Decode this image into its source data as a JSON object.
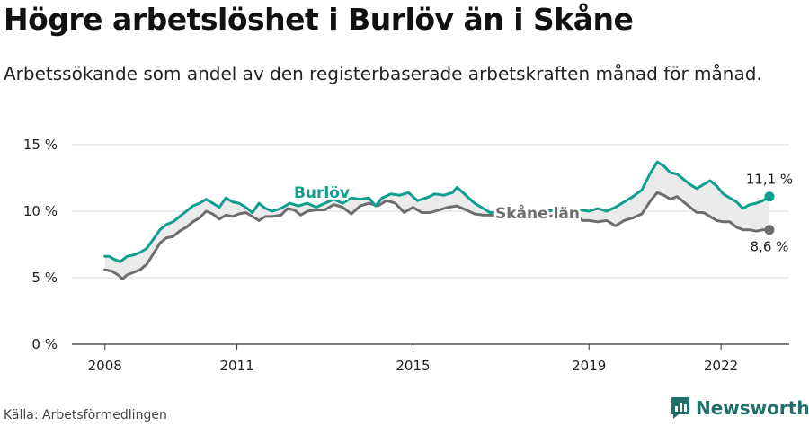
{
  "header": {
    "title": "Högre arbetslöshet i Burlöv än i Skåne",
    "subtitle": "Arbetssökande som andel av den registerbaserade arbetskraften månad för månad."
  },
  "footer": {
    "source": "Källa: Arbetsförmedlingen",
    "brand": "Newsworthy"
  },
  "chart_data": {
    "type": "line",
    "xlabel": "",
    "ylabel": "",
    "ylim": [
      0,
      15
    ],
    "xlim": [
      2008,
      2023.1
    ],
    "grid": true,
    "y_ticks": [
      0,
      5,
      10,
      15
    ],
    "y_tick_labels": [
      "0 %",
      "5 %",
      "10 %",
      "15 %"
    ],
    "x_ticks": [
      2008,
      2011,
      2015,
      2019,
      2022
    ],
    "x_tick_labels": [
      "2008",
      "2011",
      "2015",
      "2019",
      "2022"
    ],
    "colors": {
      "burlov": "#0f9e8f",
      "skane": "#6d6d6d",
      "grid": "#d9d9d9",
      "text": "#222222"
    },
    "series": [
      {
        "name": "Burlöv",
        "label": "Burlöv",
        "end_label": "11,1 %",
        "points": [
          [
            2008.0,
            6.6
          ],
          [
            2008.1,
            6.6
          ],
          [
            2008.2,
            6.4
          ],
          [
            2008.35,
            6.2
          ],
          [
            2008.5,
            6.6
          ],
          [
            2008.65,
            6.7
          ],
          [
            2008.8,
            6.9
          ],
          [
            2008.95,
            7.2
          ],
          [
            2009.1,
            7.9
          ],
          [
            2009.25,
            8.6
          ],
          [
            2009.4,
            9.0
          ],
          [
            2009.55,
            9.2
          ],
          [
            2009.7,
            9.6
          ],
          [
            2009.85,
            10.0
          ],
          [
            2010.0,
            10.4
          ],
          [
            2010.15,
            10.6
          ],
          [
            2010.3,
            10.9
          ],
          [
            2010.45,
            10.6
          ],
          [
            2010.6,
            10.3
          ],
          [
            2010.75,
            11.0
          ],
          [
            2010.9,
            10.7
          ],
          [
            2011.05,
            10.6
          ],
          [
            2011.2,
            10.3
          ],
          [
            2011.35,
            9.9
          ],
          [
            2011.5,
            10.6
          ],
          [
            2011.65,
            10.2
          ],
          [
            2011.8,
            10.0
          ],
          [
            2012.0,
            10.2
          ],
          [
            2012.2,
            10.6
          ],
          [
            2012.4,
            10.4
          ],
          [
            2012.6,
            10.6
          ],
          [
            2012.8,
            10.3
          ],
          [
            2013.0,
            10.6
          ],
          [
            2013.2,
            10.9
          ],
          [
            2013.4,
            10.6
          ],
          [
            2013.6,
            11.0
          ],
          [
            2013.8,
            10.9
          ],
          [
            2014.0,
            11.0
          ],
          [
            2014.15,
            10.4
          ],
          [
            2014.3,
            11.0
          ],
          [
            2014.5,
            11.3
          ],
          [
            2014.7,
            11.2
          ],
          [
            2014.9,
            11.4
          ],
          [
            2015.1,
            10.8
          ],
          [
            2015.3,
            11.0
          ],
          [
            2015.5,
            11.3
          ],
          [
            2015.7,
            11.2
          ],
          [
            2015.9,
            11.4
          ],
          [
            2016.0,
            11.8
          ],
          [
            2016.2,
            11.2
          ],
          [
            2016.4,
            10.6
          ],
          [
            2016.6,
            10.2
          ],
          [
            2016.75,
            9.9
          ],
          [
            2018.8,
            10.1
          ],
          [
            2019.0,
            10.0
          ],
          [
            2019.2,
            10.2
          ],
          [
            2019.4,
            10.0
          ],
          [
            2019.6,
            10.3
          ],
          [
            2019.8,
            10.7
          ],
          [
            2020.0,
            11.1
          ],
          [
            2020.2,
            11.6
          ],
          [
            2020.4,
            12.9
          ],
          [
            2020.55,
            13.7
          ],
          [
            2020.7,
            13.4
          ],
          [
            2020.85,
            12.9
          ],
          [
            2021.0,
            12.8
          ],
          [
            2021.15,
            12.4
          ],
          [
            2021.3,
            12.0
          ],
          [
            2021.45,
            11.7
          ],
          [
            2021.6,
            12.0
          ],
          [
            2021.75,
            12.3
          ],
          [
            2021.9,
            11.9
          ],
          [
            2022.05,
            11.3
          ],
          [
            2022.2,
            11.0
          ],
          [
            2022.35,
            10.7
          ],
          [
            2022.5,
            10.2
          ],
          [
            2022.65,
            10.5
          ],
          [
            2022.8,
            10.6
          ],
          [
            2022.95,
            10.8
          ],
          [
            2023.1,
            11.1
          ]
        ]
      },
      {
        "name": "Skåne län",
        "label": "Skåne län",
        "end_label": "8,6 %",
        "points": [
          [
            2008.0,
            5.6
          ],
          [
            2008.15,
            5.5
          ],
          [
            2008.3,
            5.2
          ],
          [
            2008.4,
            4.9
          ],
          [
            2008.5,
            5.2
          ],
          [
            2008.65,
            5.4
          ],
          [
            2008.8,
            5.6
          ],
          [
            2008.95,
            6.0
          ],
          [
            2009.1,
            6.8
          ],
          [
            2009.25,
            7.6
          ],
          [
            2009.4,
            8.0
          ],
          [
            2009.55,
            8.1
          ],
          [
            2009.7,
            8.5
          ],
          [
            2009.85,
            8.8
          ],
          [
            2010.0,
            9.2
          ],
          [
            2010.15,
            9.5
          ],
          [
            2010.3,
            10.0
          ],
          [
            2010.45,
            9.8
          ],
          [
            2010.6,
            9.4
          ],
          [
            2010.75,
            9.7
          ],
          [
            2010.9,
            9.6
          ],
          [
            2011.05,
            9.8
          ],
          [
            2011.2,
            9.9
          ],
          [
            2011.35,
            9.6
          ],
          [
            2011.5,
            9.3
          ],
          [
            2011.65,
            9.6
          ],
          [
            2011.8,
            9.6
          ],
          [
            2012.0,
            9.7
          ],
          [
            2012.15,
            10.2
          ],
          [
            2012.3,
            10.1
          ],
          [
            2012.45,
            9.7
          ],
          [
            2012.6,
            10.0
          ],
          [
            2012.8,
            10.1
          ],
          [
            2013.0,
            10.1
          ],
          [
            2013.2,
            10.5
          ],
          [
            2013.4,
            10.3
          ],
          [
            2013.6,
            9.8
          ],
          [
            2013.8,
            10.4
          ],
          [
            2014.0,
            10.6
          ],
          [
            2014.2,
            10.4
          ],
          [
            2014.4,
            10.8
          ],
          [
            2014.6,
            10.6
          ],
          [
            2014.8,
            9.9
          ],
          [
            2015.0,
            10.3
          ],
          [
            2015.2,
            9.9
          ],
          [
            2015.4,
            9.9
          ],
          [
            2015.6,
            10.1
          ],
          [
            2015.8,
            10.3
          ],
          [
            2016.0,
            10.4
          ],
          [
            2016.2,
            10.1
          ],
          [
            2016.4,
            9.8
          ],
          [
            2016.6,
            9.7
          ],
          [
            2016.75,
            9.7
          ],
          [
            2018.75,
            9.6
          ],
          [
            2018.85,
            9.3
          ],
          [
            2019.0,
            9.3
          ],
          [
            2019.2,
            9.2
          ],
          [
            2019.4,
            9.3
          ],
          [
            2019.6,
            8.9
          ],
          [
            2019.8,
            9.3
          ],
          [
            2020.0,
            9.5
          ],
          [
            2020.2,
            9.8
          ],
          [
            2020.4,
            10.8
          ],
          [
            2020.55,
            11.4
          ],
          [
            2020.7,
            11.2
          ],
          [
            2020.85,
            10.9
          ],
          [
            2021.0,
            11.1
          ],
          [
            2021.15,
            10.7
          ],
          [
            2021.3,
            10.3
          ],
          [
            2021.45,
            9.9
          ],
          [
            2021.6,
            9.9
          ],
          [
            2021.75,
            9.6
          ],
          [
            2021.9,
            9.3
          ],
          [
            2022.05,
            9.2
          ],
          [
            2022.2,
            9.2
          ],
          [
            2022.35,
            8.8
          ],
          [
            2022.5,
            8.6
          ],
          [
            2022.65,
            8.6
          ],
          [
            2022.8,
            8.5
          ],
          [
            2022.95,
            8.6
          ],
          [
            2023.1,
            8.6
          ]
        ]
      }
    ]
  }
}
